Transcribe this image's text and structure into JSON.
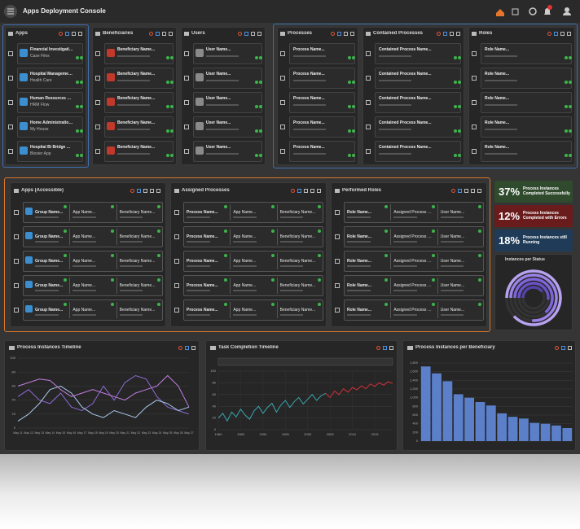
{
  "header": {
    "title": "Apps Deployment Console"
  },
  "top_panels": [
    {
      "title": "Apps",
      "items": [
        {
          "name": "Financial Investigation Cente...",
          "sub": "Case Files"
        },
        {
          "name": "Hospital Management App...",
          "sub": "Health Care"
        },
        {
          "name": "Human Resources Manageme...",
          "sub": "HRM Flow"
        },
        {
          "name": "Home Administration App...",
          "sub": "My House"
        },
        {
          "name": "Hospital Bi Bridge Application...",
          "sub": "Bloster App"
        }
      ]
    },
    {
      "title": "Beneficiaries",
      "items": [
        {
          "name": "Beneficiary Name..."
        },
        {
          "name": "Beneficiary Name..."
        },
        {
          "name": "Beneficiary Name..."
        },
        {
          "name": "Beneficiary Name..."
        },
        {
          "name": "Beneficiary Name..."
        }
      ]
    },
    {
      "title": "Users",
      "items": [
        {
          "name": "User Name..."
        },
        {
          "name": "User Name..."
        },
        {
          "name": "User Name..."
        },
        {
          "name": "User Name..."
        },
        {
          "name": "User Name..."
        }
      ]
    },
    {
      "title": "Processes",
      "items": [
        {
          "name": "Process Name..."
        },
        {
          "name": "Process Name..."
        },
        {
          "name": "Process Name..."
        },
        {
          "name": "Process Name..."
        },
        {
          "name": "Process Name..."
        }
      ]
    },
    {
      "title": "Contained Processes",
      "items": [
        {
          "name": "Contained Process Name..."
        },
        {
          "name": "Contained Process Name..."
        },
        {
          "name": "Contained Process Name..."
        },
        {
          "name": "Contained Process Name..."
        },
        {
          "name": "Contained Process Name..."
        }
      ]
    },
    {
      "title": "Roles",
      "items": [
        {
          "name": "Role Name..."
        },
        {
          "name": "Role Name..."
        },
        {
          "name": "Role Name..."
        },
        {
          "name": "Role Name..."
        },
        {
          "name": "Role Name..."
        }
      ]
    }
  ],
  "middle_panels": [
    {
      "title": "Apps (Accessible)",
      "items": [
        {
          "cells": [
            "Group Name...",
            "App Name...",
            "Beneficiary Name..."
          ]
        },
        {
          "cells": [
            "Group Name...",
            "App Name...",
            "Beneficiary Name..."
          ]
        },
        {
          "cells": [
            "Group Name...",
            "App Name...",
            "Beneficiary Name..."
          ]
        },
        {
          "cells": [
            "Group Name...",
            "App Name...",
            "Beneficiary Name..."
          ]
        },
        {
          "cells": [
            "Group Name...",
            "App Name...",
            "Beneficiary Name..."
          ]
        }
      ]
    },
    {
      "title": "Assigned Processes",
      "items": [
        {
          "cells": [
            "Process Name...",
            "App Name...",
            "Beneficiary Name..."
          ]
        },
        {
          "cells": [
            "Process Name...",
            "App Name...",
            "Beneficiary Name..."
          ]
        },
        {
          "cells": [
            "Process Name...",
            "App Name...",
            "Beneficiary Name..."
          ]
        },
        {
          "cells": [
            "Process Name...",
            "App Name...",
            "Beneficiary Name..."
          ]
        },
        {
          "cells": [
            "Process Name...",
            "App Name...",
            "Beneficiary Name..."
          ]
        }
      ]
    },
    {
      "title": "Performed Roles",
      "items": [
        {
          "cells": [
            "Role Name...",
            "Assigned Process Name...",
            "User Name..."
          ]
        },
        {
          "cells": [
            "Role Name...",
            "Assigned Process Name...",
            "User Name..."
          ]
        },
        {
          "cells": [
            "Role Name...",
            "Assigned Process Name...",
            "User Name..."
          ]
        },
        {
          "cells": [
            "Role Name...",
            "Assigned Process Name...",
            "User Name..."
          ]
        },
        {
          "cells": [
            "Role Name...",
            "Assigned Process Name...",
            "User Name..."
          ]
        }
      ]
    }
  ],
  "kpis": [
    {
      "value": "37%",
      "label": "Process Instances Completed Successfully",
      "color": "#2f4a2c"
    },
    {
      "value": "12%",
      "label": "Process Instances Completed with Errors",
      "color": "#6a1c1c"
    },
    {
      "value": "18%",
      "label": "Process Instances still Running",
      "color": "#1f3b57"
    }
  ],
  "chart_data": [
    {
      "type": "radialBar",
      "title": "Instances per Status",
      "values": [
        88,
        76,
        64,
        52,
        40
      ],
      "colors": [
        "#b7a2ef",
        "#9b82e6",
        "#7f66d8",
        "#6a52c4",
        "#5542a8"
      ],
      "ylim": [
        0,
        100
      ]
    },
    {
      "type": "line",
      "title": "Process Instances Timeline",
      "categories": [
        "May 11",
        "May 12",
        "May 13",
        "May 14",
        "May 15",
        "May 16",
        "May 17",
        "May 18",
        "May 19",
        "May 20",
        "May 21",
        "May 22",
        "May 23",
        "May 24",
        "May 25",
        "May 26",
        "May 27"
      ],
      "series": [
        {
          "color": "#8e6bd6",
          "values": [
            45,
            55,
            40,
            35,
            50,
            30,
            25,
            35,
            60,
            40,
            65,
            75,
            70,
            45,
            30,
            25,
            20
          ]
        },
        {
          "color": "#a9c8e8",
          "values": [
            10,
            20,
            35,
            55,
            60,
            50,
            30,
            20,
            15,
            25,
            20,
            15,
            30,
            40,
            35,
            25,
            30
          ]
        },
        {
          "color": "#c27ee0",
          "values": [
            60,
            65,
            70,
            68,
            55,
            45,
            50,
            55,
            50,
            45,
            40,
            50,
            55,
            60,
            75,
            60,
            30
          ]
        }
      ],
      "ylim": [
        0,
        100
      ],
      "yticks": [
        0,
        20,
        40,
        60,
        80,
        100
      ],
      "grid": true
    },
    {
      "type": "line",
      "title": "Task Completion Timeline",
      "x": [
        1980,
        1981,
        1982,
        1983,
        1984,
        1985,
        1986,
        1987,
        1988,
        1989,
        1990,
        1991,
        1992,
        1993,
        1994,
        1995,
        1996,
        1997,
        1998,
        1999,
        2000,
        2001,
        2002,
        2003,
        2004,
        2005,
        2006,
        2007,
        2008,
        2009,
        2010,
        2011,
        2012,
        2013,
        2014,
        2015,
        2016,
        2017,
        2018,
        2019
      ],
      "series": [
        {
          "color": "#3aa7b0",
          "values": [
            20,
            28,
            15,
            30,
            22,
            35,
            25,
            18,
            32,
            40,
            28,
            38,
            45,
            30,
            42,
            50,
            38,
            48,
            55,
            44,
            52,
            60,
            50,
            58,
            62,
            null,
            null,
            null,
            null,
            null,
            null,
            null,
            null,
            null,
            null,
            null,
            null,
            null,
            null,
            null
          ]
        },
        {
          "color": "#d0303a",
          "values": [
            null,
            null,
            null,
            null,
            null,
            null,
            null,
            null,
            null,
            null,
            null,
            null,
            null,
            null,
            null,
            null,
            null,
            null,
            null,
            null,
            null,
            null,
            null,
            null,
            62,
            55,
            66,
            60,
            70,
            64,
            72,
            68,
            75,
            70,
            78,
            74,
            80,
            76,
            82,
            79
          ]
        }
      ],
      "xlim": [
        1980,
        2019
      ],
      "xticks": [
        1980,
        1985,
        1990,
        1995,
        2000,
        2005,
        2010,
        2015
      ],
      "ylim": [
        0,
        100
      ],
      "yticks": [
        0,
        20,
        40,
        60,
        80,
        100
      ],
      "grid": true
    },
    {
      "type": "bar",
      "title": "Process Instances per Beneficiary",
      "categories": [
        null,
        null,
        null,
        null,
        null,
        null,
        null,
        null,
        null,
        null,
        null,
        null,
        null,
        null
      ],
      "values": [
        1720,
        1560,
        1380,
        1080,
        1000,
        900,
        820,
        640,
        560,
        520,
        420,
        400,
        360,
        300
      ],
      "color": "#5b7fc9",
      "ylim": [
        0,
        1800
      ],
      "yticks": [
        0,
        200,
        400,
        600,
        800,
        {
          "value": 1000,
          "label": "1,000"
        },
        {
          "value": 1200,
          "label": "1,200"
        },
        {
          "value": 1400,
          "label": "1,400"
        },
        {
          "value": 1600,
          "label": "1,600"
        },
        {
          "value": 1800,
          "label": "1,800"
        }
      ],
      "grid": true
    }
  ]
}
